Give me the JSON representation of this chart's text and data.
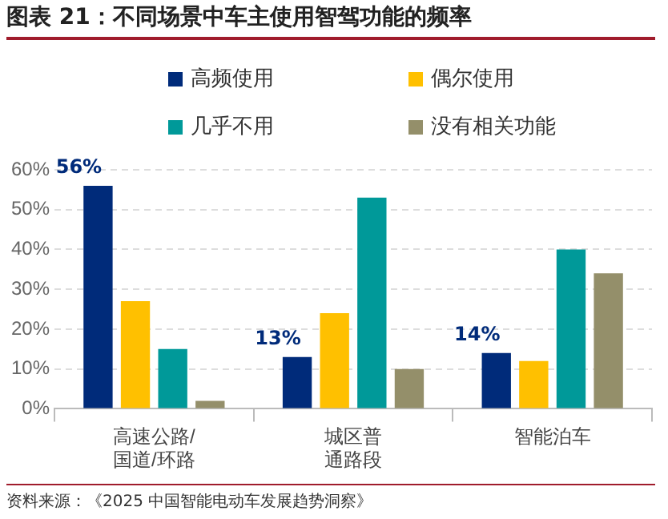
{
  "chart_data": {
    "type": "bar",
    "title": "图表 21：不同场景中车主使用智驾功能的频率",
    "categories": [
      "高速公路/国道/环路",
      "城区普通路段",
      "智能泊车"
    ],
    "series": [
      {
        "name": "高频使用",
        "color": "#002b7a",
        "values": [
          56,
          13,
          14
        ],
        "value_labels": [
          "56%",
          "13%",
          "14%"
        ]
      },
      {
        "name": "偶尔使用",
        "color": "#ffc000",
        "values": [
          27,
          24,
          12
        ]
      },
      {
        "name": "几乎不用",
        "color": "#009999",
        "values": [
          15,
          53,
          40
        ]
      },
      {
        "name": "没有相关功能",
        "color": "#948f6a",
        "values": [
          2,
          10,
          34
        ]
      }
    ],
    "ylim": [
      0,
      60
    ],
    "yticks": [
      {
        "value": 0,
        "label": "0%"
      },
      {
        "value": 10,
        "label": "10%"
      },
      {
        "value": 20,
        "label": "20%"
      },
      {
        "value": 30,
        "label": "30%"
      },
      {
        "value": 40,
        "label": "40%"
      },
      {
        "value": 50,
        "label": "50%"
      },
      {
        "value": 60,
        "label": "60%"
      }
    ],
    "grid": "y",
    "legend": "top",
    "annotations": [
      "资料来源：《2025 中国智能电动车发展趋势洞察》"
    ]
  }
}
